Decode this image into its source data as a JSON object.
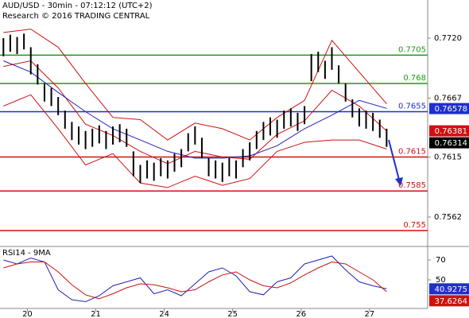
{
  "chart_data": [
    {
      "type": "ohlc",
      "title": "AUD/USD - 30min - 07:12:12 (UTC+2)",
      "subtitle": "Research © 2016 TRADING CENTRAL",
      "xlim": [
        -0.5,
        62
      ],
      "ylim": [
        0.75374,
        0.77537
      ],
      "yticks": [
        {
          "value": 0.772,
          "label": "0.7720"
        },
        0.7667,
        0.7615,
        0.7562
      ],
      "x": [
        0,
        1,
        2,
        3,
        4,
        5,
        6,
        7,
        8,
        9,
        10,
        11,
        12,
        13,
        14,
        15,
        16,
        17,
        18,
        19,
        20,
        21,
        22,
        23,
        24,
        25,
        26,
        27,
        28,
        29,
        30,
        31,
        32,
        33,
        34,
        35,
        36,
        37,
        38,
        39,
        40,
        41,
        42,
        43,
        44,
        45,
        46,
        47,
        48,
        49,
        50,
        51,
        52,
        53,
        54,
        55,
        56
      ],
      "highs": [
        0.772,
        0.7723,
        0.7721,
        0.7724,
        0.7712,
        0.7697,
        0.768,
        0.7676,
        0.7668,
        0.7656,
        0.7646,
        0.7642,
        0.7638,
        0.764,
        0.7643,
        0.7638,
        0.7642,
        0.7644,
        0.764,
        0.762,
        0.7608,
        0.7612,
        0.761,
        0.7614,
        0.7612,
        0.7618,
        0.7622,
        0.7636,
        0.7642,
        0.7632,
        0.7614,
        0.7612,
        0.761,
        0.7614,
        0.7612,
        0.7622,
        0.7628,
        0.7638,
        0.7646,
        0.765,
        0.7648,
        0.7656,
        0.7658,
        0.7654,
        0.766,
        0.7706,
        0.7708,
        0.77,
        0.7712,
        0.7696,
        0.768,
        0.7666,
        0.7658,
        0.7656,
        0.7654,
        0.7648,
        0.764
      ],
      "lows": [
        0.7704,
        0.7708,
        0.7706,
        0.771,
        0.7688,
        0.7679,
        0.7664,
        0.766,
        0.7652,
        0.764,
        0.763,
        0.7626,
        0.7622,
        0.7624,
        0.7627,
        0.7622,
        0.7626,
        0.7628,
        0.7624,
        0.7598,
        0.7592,
        0.7596,
        0.7594,
        0.7598,
        0.7596,
        0.7602,
        0.7606,
        0.762,
        0.7626,
        0.7614,
        0.7598,
        0.7596,
        0.7593,
        0.7598,
        0.7596,
        0.7606,
        0.7612,
        0.7622,
        0.763,
        0.7634,
        0.7632,
        0.764,
        0.7642,
        0.7638,
        0.7644,
        0.7682,
        0.769,
        0.7684,
        0.7692,
        0.768,
        0.7664,
        0.765,
        0.7642,
        0.764,
        0.7638,
        0.7632,
        0.7624
      ],
      "bar_color": "#000000",
      "series": [
        {
          "color": "#cc1111",
          "x": [
            0,
            4,
            8,
            12,
            16,
            20,
            24,
            28,
            32,
            36,
            40,
            44,
            48,
            52,
            56
          ],
          "values": [
            0.7725,
            0.7728,
            0.7712,
            0.768,
            0.765,
            0.7648,
            0.763,
            0.7645,
            0.764,
            0.763,
            0.765,
            0.7665,
            0.7718,
            0.769,
            0.7662
          ]
        },
        {
          "color": "#cc1111",
          "x": [
            0,
            4,
            8,
            12,
            16,
            20,
            24,
            28,
            32,
            36,
            40,
            44,
            48,
            52,
            56
          ],
          "values": [
            0.766,
            0.767,
            0.764,
            0.7608,
            0.7618,
            0.7592,
            0.7588,
            0.7598,
            0.759,
            0.7596,
            0.762,
            0.7628,
            0.763,
            0.763,
            0.7622
          ]
        },
        {
          "color": "#cc1111",
          "x": [
            0,
            4,
            8,
            12,
            16,
            20,
            24,
            28,
            32,
            36,
            40,
            44,
            48,
            52,
            56
          ],
          "values": [
            0.7695,
            0.77,
            0.7676,
            0.7644,
            0.7634,
            0.762,
            0.7609,
            0.762,
            0.7615,
            0.7613,
            0.7635,
            0.7647,
            0.7674,
            0.766,
            0.7638
          ]
        },
        {
          "color": "#2222bb",
          "x": [
            0,
            4,
            8,
            12,
            16,
            20,
            24,
            28,
            32,
            36,
            40,
            44,
            48,
            52,
            56
          ],
          "values": [
            0.77,
            0.769,
            0.7672,
            0.7655,
            0.764,
            0.763,
            0.762,
            0.7614,
            0.7614,
            0.7616,
            0.7625,
            0.764,
            0.7652,
            0.7665,
            0.7658
          ]
        }
      ],
      "levels": [
        {
          "value": 0.7705,
          "color": "#1a9a1a"
        },
        {
          "value": 0.768,
          "color": "#1a9a1a"
        },
        {
          "value": 0.7655,
          "color": "#1f2fd0"
        },
        {
          "value": 0.7615,
          "color": "#d01010"
        },
        {
          "value": 0.7585,
          "color": "#d01010"
        },
        {
          "value": 0.755,
          "color": "#d01010"
        }
      ],
      "tags": [
        {
          "value": 0.76578,
          "color": "#1f2fd0"
        },
        {
          "value": 0.76381,
          "color": "#d01010"
        },
        {
          "value": 0.76314,
          "color": "#000000"
        }
      ]
    },
    {
      "type": "line",
      "title": "RSI14 - 9MA",
      "xlim": [
        -0.5,
        62
      ],
      "ylim": [
        22.8,
        82
      ],
      "yticks": [
        70,
        50
      ],
      "xticks": [
        {
          "value": 3.5,
          "label": "20"
        },
        {
          "value": 13.5,
          "label": "21"
        },
        {
          "value": 23.5,
          "label": "24"
        },
        {
          "value": 33.5,
          "label": "25"
        },
        {
          "value": 43.5,
          "label": "26"
        },
        {
          "value": 53.5,
          "label": "27"
        }
      ],
      "series": [
        {
          "color": "#2222bb",
          "x": [
            0,
            2,
            4,
            6,
            8,
            10,
            12,
            14,
            16,
            18,
            20,
            22,
            24,
            26,
            28,
            30,
            32,
            34,
            36,
            38,
            40,
            42,
            44,
            46,
            48,
            50,
            52,
            54,
            56
          ],
          "values": [
            70,
            66,
            72,
            68,
            40,
            30,
            28,
            34,
            44,
            48,
            52,
            36,
            40,
            34,
            46,
            58,
            62,
            54,
            38,
            35,
            48,
            52,
            66,
            70,
            74,
            60,
            48,
            44,
            41
          ]
        },
        {
          "color": "#cc1111",
          "x": [
            0,
            2,
            4,
            6,
            8,
            10,
            12,
            14,
            16,
            18,
            20,
            22,
            24,
            26,
            28,
            30,
            32,
            34,
            36,
            38,
            40,
            42,
            44,
            46,
            48,
            50,
            52,
            54,
            56
          ],
          "values": [
            62,
            66,
            68,
            68,
            58,
            45,
            35,
            31,
            36,
            42,
            46,
            45,
            42,
            38,
            40,
            48,
            55,
            58,
            50,
            44,
            42,
            47,
            55,
            62,
            68,
            66,
            58,
            50,
            38
          ]
        }
      ],
      "tags": [
        {
          "value": 40.9275,
          "color": "#1f2fd0"
        },
        {
          "value": 37.6264,
          "color": "#d01010"
        }
      ]
    }
  ]
}
